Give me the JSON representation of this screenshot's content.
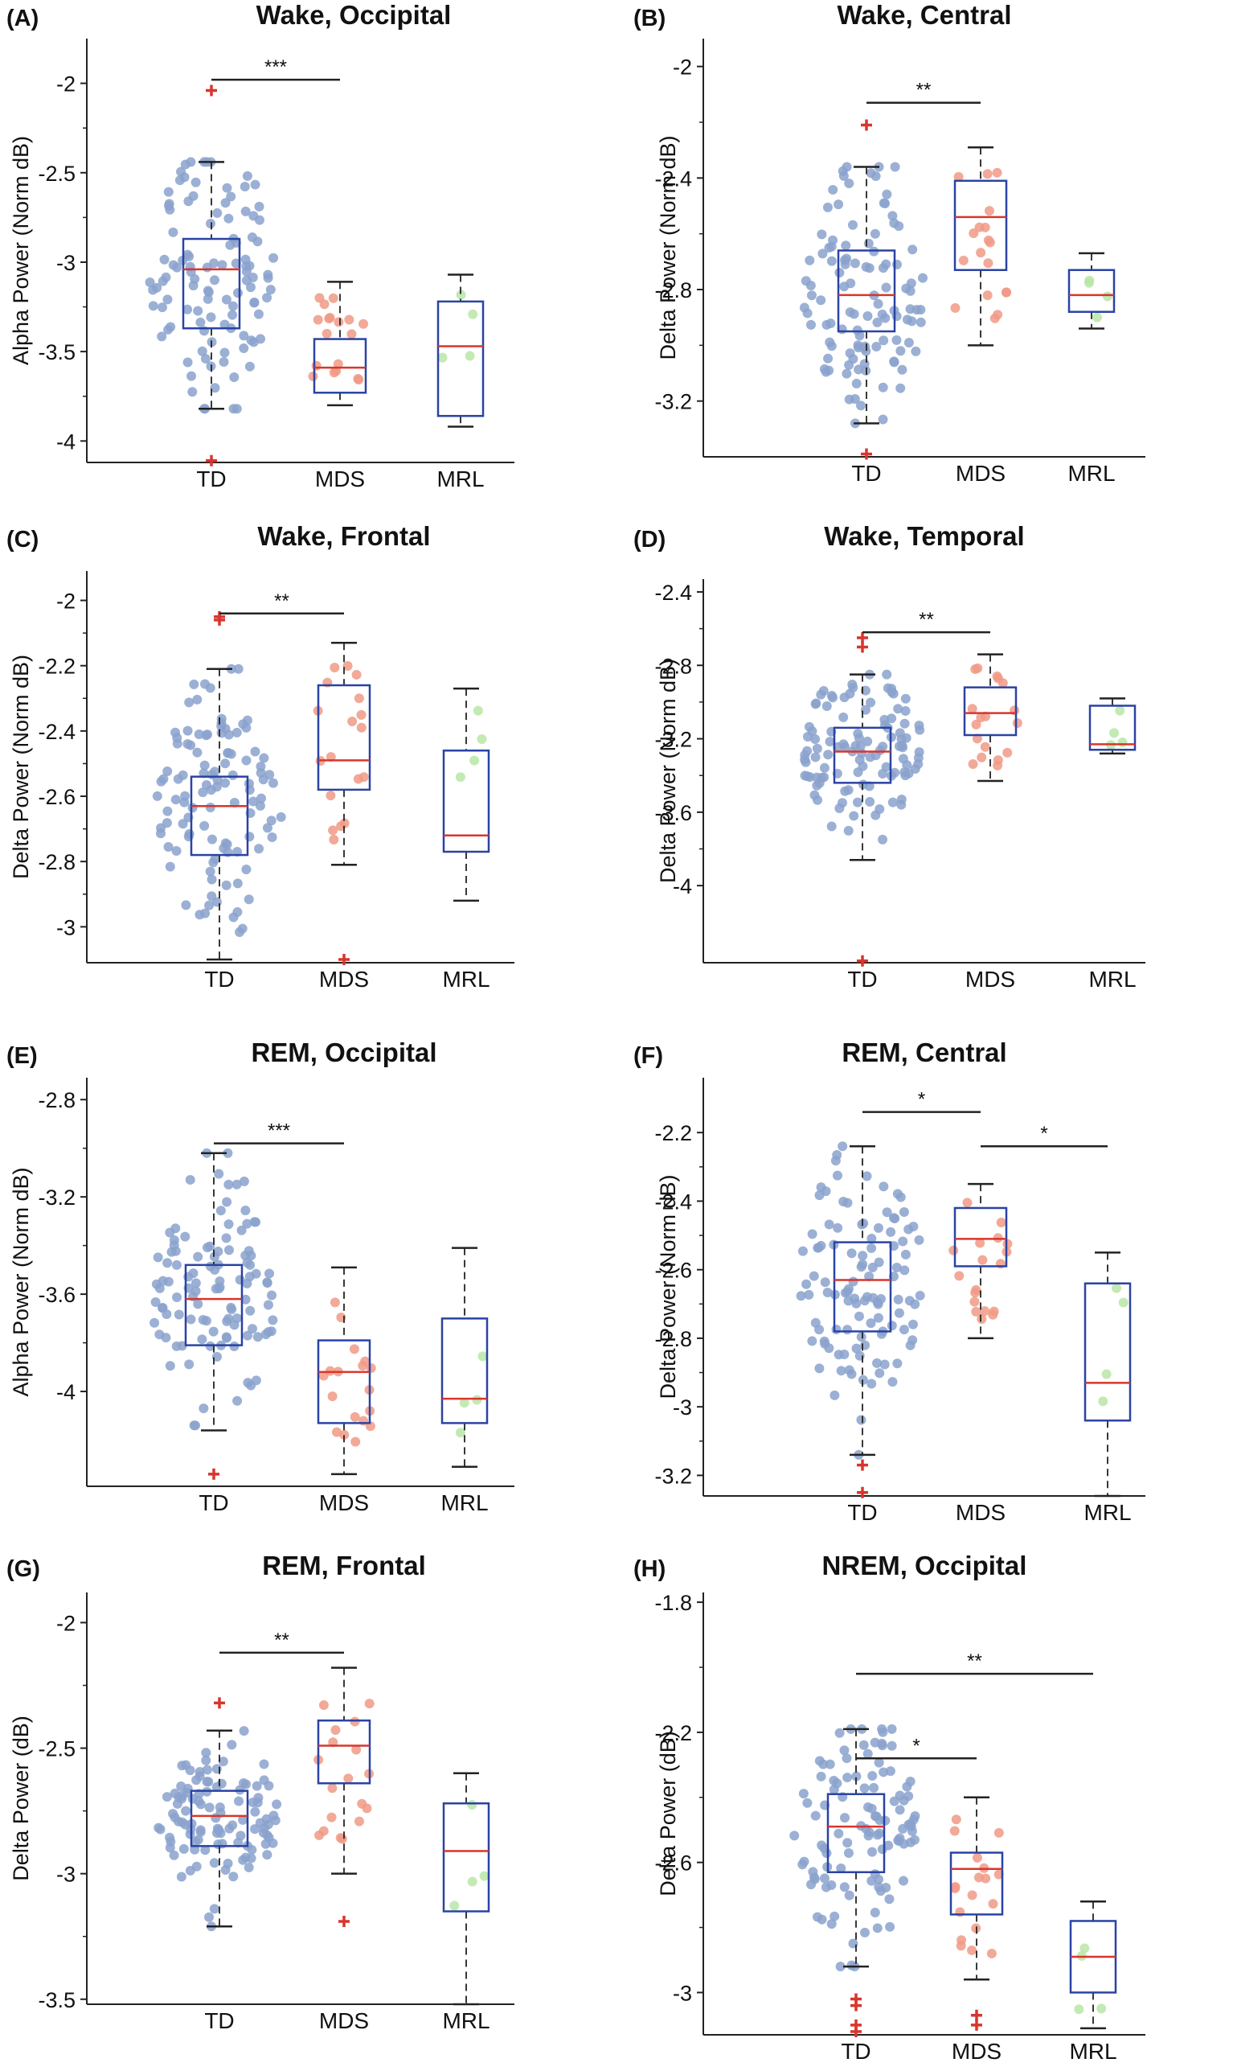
{
  "chart_data": [
    {
      "type": "box",
      "panel": "(A)",
      "title": "Wake, Occipital",
      "ylabel": "Alpha Power (Norm dB)",
      "categories": [
        "TD",
        "MDS",
        "MRL"
      ],
      "yticks": [
        "-2",
        "-2.5",
        "-3",
        "-3.5",
        "-4"
      ],
      "tick_values": [
        -2,
        -2.5,
        -3,
        -3.5,
        -4
      ],
      "ylim": [
        -4.12,
        -1.75
      ],
      "boxes": [
        {
          "group": "TD",
          "whisker_low": -3.82,
          "q1": -3.37,
          "median": -3.04,
          "q3": -2.87,
          "whisker_high": -2.44,
          "outliers": [
            -2.04,
            -4.11
          ]
        },
        {
          "group": "MDS",
          "whisker_low": -3.8,
          "q1": -3.73,
          "median": -3.59,
          "q3": -3.43,
          "whisker_high": -3.11,
          "outliers": []
        },
        {
          "group": "MRL",
          "whisker_low": -3.92,
          "q1": -3.86,
          "median": -3.47,
          "q3": -3.22,
          "whisker_high": -3.07,
          "outliers": []
        }
      ],
      "significance": [
        {
          "from": "TD",
          "to": "MDS",
          "label": "***",
          "value": -1.98
        }
      ]
    },
    {
      "type": "box",
      "panel": "(B)",
      "title": "Wake, Central",
      "ylabel": "Delta Power (Norm dB)",
      "categories": [
        "TD",
        "MDS",
        "MRL"
      ],
      "yticks": [
        "-2",
        "-2.4",
        "-2.8",
        "-3.2"
      ],
      "tick_values": [
        -2,
        -2.4,
        -2.8,
        -3.2
      ],
      "ylim": [
        -3.4,
        -1.9
      ],
      "boxes": [
        {
          "group": "TD",
          "whisker_low": -3.28,
          "q1": -2.95,
          "median": -2.82,
          "q3": -2.66,
          "whisker_high": -2.36,
          "outliers": [
            -2.21,
            -3.39
          ]
        },
        {
          "group": "MDS",
          "whisker_low": -3.0,
          "q1": -2.73,
          "median": -2.54,
          "q3": -2.41,
          "whisker_high": -2.29,
          "outliers": []
        },
        {
          "group": "MRL",
          "whisker_low": -2.94,
          "q1": -2.88,
          "median": -2.82,
          "q3": -2.73,
          "whisker_high": -2.67,
          "outliers": []
        }
      ],
      "significance": [
        {
          "from": "TD",
          "to": "MDS",
          "label": "**",
          "value": -2.13
        }
      ]
    },
    {
      "type": "box",
      "panel": "(C)",
      "title": "Wake, Frontal",
      "ylabel": "Delta Power (Norm dB)",
      "categories": [
        "TD",
        "MDS",
        "MRL"
      ],
      "yticks": [
        "-2",
        "-2.2",
        "-2.4",
        "-2.6",
        "-2.8",
        "-3"
      ],
      "tick_values": [
        -2,
        -2.2,
        -2.4,
        -2.6,
        -2.8,
        -3
      ],
      "ylim": [
        -3.11,
        -1.91
      ],
      "boxes": [
        {
          "group": "TD",
          "whisker_low": -3.1,
          "q1": -2.78,
          "median": -2.63,
          "q3": -2.54,
          "whisker_high": -2.21,
          "outliers": [
            -2.06,
            -2.05
          ]
        },
        {
          "group": "MDS",
          "whisker_low": -2.81,
          "q1": -2.58,
          "median": -2.49,
          "q3": -2.26,
          "whisker_high": -2.13,
          "outliers": [
            -3.1
          ]
        },
        {
          "group": "MRL",
          "whisker_low": -2.92,
          "q1": -2.77,
          "median": -2.72,
          "q3": -2.46,
          "whisker_high": -2.27,
          "outliers": []
        }
      ],
      "significance": [
        {
          "from": "TD",
          "to": "MDS",
          "label": "**",
          "value": -2.04
        }
      ]
    },
    {
      "type": "box",
      "panel": "(D)",
      "title": "Wake, Temporal",
      "ylabel": "Delta Power (Norm dB)",
      "categories": [
        "TD",
        "MDS",
        "MRL"
      ],
      "yticks": [
        "-2.4",
        "-2.8",
        "-3.2",
        "-3.6",
        "-4"
      ],
      "tick_values": [
        -2.4,
        -2.8,
        -3.2,
        -3.6,
        -4
      ],
      "ylim": [
        -4.42,
        -2.33
      ],
      "boxes": [
        {
          "group": "TD",
          "whisker_low": -3.86,
          "q1": -3.44,
          "median": -3.27,
          "q3": -3.14,
          "whisker_high": -2.85,
          "outliers": [
            -2.65,
            -2.7,
            -4.41
          ]
        },
        {
          "group": "MDS",
          "whisker_low": -3.43,
          "q1": -3.18,
          "median": -3.06,
          "q3": -2.92,
          "whisker_high": -2.74,
          "outliers": []
        },
        {
          "group": "MRL",
          "whisker_low": -3.28,
          "q1": -3.26,
          "median": -3.23,
          "q3": -3.02,
          "whisker_high": -2.98,
          "outliers": []
        }
      ],
      "significance": [
        {
          "from": "TD",
          "to": "MDS",
          "label": "**",
          "value": -2.62
        }
      ]
    },
    {
      "type": "box",
      "panel": "(E)",
      "title": "REM, Occipital",
      "ylabel": "Alpha Power (Norm dB)",
      "categories": [
        "TD",
        "MDS",
        "MRL"
      ],
      "yticks": [
        "-2.8",
        "-3.2",
        "-3.6",
        "-4"
      ],
      "tick_values": [
        -2.8,
        -3.2,
        -3.6,
        -4
      ],
      "ylim": [
        -4.39,
        -2.71
      ],
      "boxes": [
        {
          "group": "TD",
          "whisker_low": -4.16,
          "q1": -3.81,
          "median": -3.62,
          "q3": -3.48,
          "whisker_high": -3.02,
          "outliers": [
            -4.34
          ]
        },
        {
          "group": "MDS",
          "whisker_low": -4.34,
          "q1": -4.13,
          "median": -3.92,
          "q3": -3.79,
          "whisker_high": -3.49,
          "outliers": []
        },
        {
          "group": "MRL",
          "whisker_low": -4.31,
          "q1": -4.13,
          "median": -4.03,
          "q3": -3.7,
          "whisker_high": -3.41,
          "outliers": []
        }
      ],
      "significance": [
        {
          "from": "TD",
          "to": "MDS",
          "label": "***",
          "value": -2.98
        }
      ]
    },
    {
      "type": "box",
      "panel": "(F)",
      "title": "REM, Central",
      "ylabel": "Delta Power (Norm dB)",
      "categories": [
        "TD",
        "MDS",
        "MRL"
      ],
      "yticks": [
        "-2.2",
        "-2.4",
        "-2.6",
        "-2.8",
        "-3",
        "-3.2"
      ],
      "tick_values": [
        -2.2,
        -2.4,
        -2.6,
        -2.8,
        -3,
        -3.2
      ],
      "ylim": [
        -3.26,
        -2.04
      ],
      "boxes": [
        {
          "group": "TD",
          "whisker_low": -3.14,
          "q1": -2.78,
          "median": -2.63,
          "q3": -2.52,
          "whisker_high": -2.24,
          "outliers": [
            -3.17,
            -3.25
          ]
        },
        {
          "group": "MDS",
          "whisker_low": -2.8,
          "q1": -2.59,
          "median": -2.51,
          "q3": -2.42,
          "whisker_high": -2.35,
          "outliers": []
        },
        {
          "group": "MRL",
          "whisker_low": -3.26,
          "q1": -3.04,
          "median": -2.93,
          "q3": -2.64,
          "whisker_high": -2.55,
          "outliers": []
        }
      ],
      "significance": [
        {
          "from": "TD",
          "to": "MDS",
          "label": "*",
          "value": -2.14
        },
        {
          "from": "MDS",
          "to": "MRL",
          "label": "*",
          "value": -2.24
        }
      ]
    },
    {
      "type": "box",
      "panel": "(G)",
      "title": "REM, Frontal",
      "ylabel": "Delta Power (dB)",
      "categories": [
        "TD",
        "MDS",
        "MRL"
      ],
      "yticks": [
        "-2",
        "-2.5",
        "-3",
        "-3.5"
      ],
      "tick_values": [
        -2,
        -2.5,
        -3,
        -3.5
      ],
      "ylim": [
        -3.52,
        -1.88
      ],
      "boxes": [
        {
          "group": "TD",
          "whisker_low": -3.21,
          "q1": -2.89,
          "median": -2.77,
          "q3": -2.67,
          "whisker_high": -2.43,
          "outliers": [
            -2.32
          ]
        },
        {
          "group": "MDS",
          "whisker_low": -3.0,
          "q1": -2.64,
          "median": -2.49,
          "q3": -2.39,
          "whisker_high": -2.18,
          "outliers": [
            -3.19
          ]
        },
        {
          "group": "MRL",
          "whisker_low": -3.52,
          "q1": -3.15,
          "median": -2.91,
          "q3": -2.72,
          "whisker_high": -2.6,
          "outliers": []
        }
      ],
      "significance": [
        {
          "from": "TD",
          "to": "MDS",
          "label": "**",
          "value": -2.12
        }
      ]
    },
    {
      "type": "box",
      "panel": "(H)",
      "title": "NREM, Occipital",
      "ylabel": "Delta Power (dB)",
      "categories": [
        "TD",
        "MDS",
        "MRL"
      ],
      "yticks": [
        "-1.8",
        "-2.2",
        "-2.6",
        "-3"
      ],
      "tick_values": [
        -1.8,
        -2.2,
        -2.6,
        -3
      ],
      "ylim": [
        -3.13,
        -1.77
      ],
      "boxes": [
        {
          "group": "TD",
          "whisker_low": -2.92,
          "q1": -2.63,
          "median": -2.49,
          "q3": -2.39,
          "whisker_high": -2.19,
          "outliers": [
            -3.02,
            -3.04,
            -3.1,
            -3.12
          ]
        },
        {
          "group": "MDS",
          "whisker_low": -2.96,
          "q1": -2.76,
          "median": -2.62,
          "q3": -2.57,
          "whisker_high": -2.4,
          "outliers": [
            -3.07,
            -3.1
          ]
        },
        {
          "group": "MRL",
          "whisker_low": -3.11,
          "q1": -3.0,
          "median": -2.89,
          "q3": -2.78,
          "whisker_high": -2.72,
          "outliers": []
        }
      ],
      "significance": [
        {
          "from": "TD",
          "to": "MRL",
          "label": "**",
          "value": -2.02
        },
        {
          "from": "TD",
          "to": "MDS",
          "label": "*",
          "value": -2.28
        }
      ]
    }
  ],
  "colors": {
    "box": "#2a43a3",
    "median": "#d8362d",
    "outlier": "#d8362d",
    "axis": "#222222",
    "whisker": "#222222",
    "td_points": "#8aa2cc",
    "mds_points": "#f09a86",
    "mrl_points": "#b8e6a6"
  },
  "point_counts": {
    "TD": 110,
    "MDS": 18,
    "MRL": 4
  }
}
